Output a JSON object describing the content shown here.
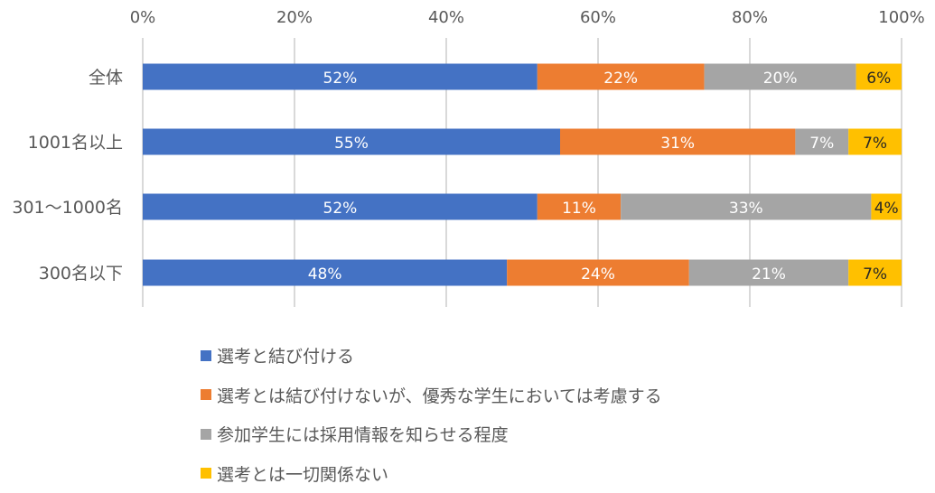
{
  "chart_data": {
    "type": "bar",
    "orientation": "horizontal",
    "stacked": "percent",
    "categories": [
      "全体",
      "1001名以上",
      "301～1000名",
      "300名以下"
    ],
    "series": [
      {
        "name": "選考と結び付ける",
        "color": "#4472C4",
        "values": [
          52,
          55,
          52,
          48
        ]
      },
      {
        "name": "選考とは結び付けないが、優秀な学生においては考慮する",
        "color": "#ED7D31",
        "values": [
          22,
          31,
          11,
          24
        ]
      },
      {
        "name": "参加学生には採用情報を知らせる程度",
        "color": "#A5A5A5",
        "values": [
          20,
          7,
          33,
          21
        ]
      },
      {
        "name": "選考とは一切関係ない",
        "color": "#FFC000",
        "values": [
          6,
          7,
          4,
          7
        ]
      }
    ],
    "x_ticks": [
      "0%",
      "20%",
      "40%",
      "60%",
      "80%",
      "100%"
    ],
    "xlim": [
      0,
      100
    ],
    "grid": true,
    "legend_position": "bottom",
    "data_label_suffix": "%"
  }
}
